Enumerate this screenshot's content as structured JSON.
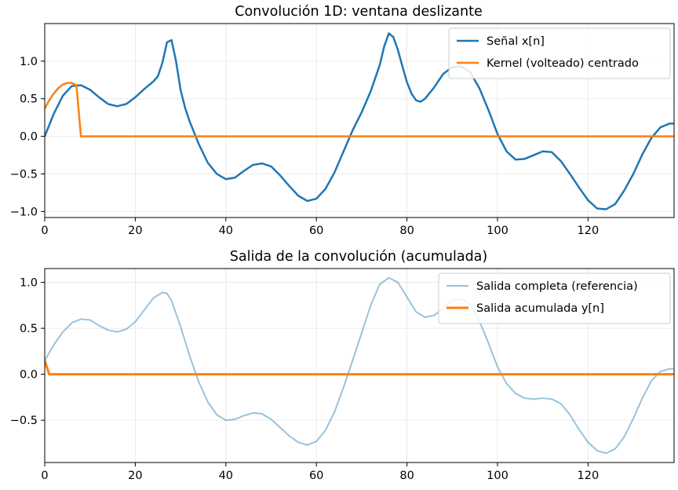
{
  "chart_data": [
    {
      "type": "line",
      "title": "Convolución 1D: ventana deslizante",
      "xlabel": "",
      "ylabel": "",
      "xlim": [
        0,
        139
      ],
      "ylim": [
        -1.08,
        1.5
      ],
      "x_ticks": [
        0,
        20,
        40,
        60,
        80,
        100,
        120
      ],
      "y_ticks": [
        1.0,
        0.5,
        0.0,
        -0.5,
        -1.0
      ],
      "x_tick_labels": [
        "0",
        "20",
        "40",
        "60",
        "80",
        "100",
        "120"
      ],
      "y_tick_labels": [
        "1.0",
        "0.5",
        "0.0",
        "−0.5",
        "−1.0"
      ],
      "grid": true,
      "legend_position": "top-right",
      "series": [
        {
          "name": "Señal x[n]",
          "color": "#1f77b4",
          "width": 2.5,
          "points": [
            [
              0,
              0.0
            ],
            [
              2,
              0.3
            ],
            [
              4,
              0.54
            ],
            [
              6,
              0.67
            ],
            [
              8,
              0.68
            ],
            [
              10,
              0.62
            ],
            [
              12,
              0.52
            ],
            [
              14,
              0.43
            ],
            [
              16,
              0.4
            ],
            [
              18,
              0.43
            ],
            [
              20,
              0.52
            ],
            [
              22,
              0.63
            ],
            [
              24,
              0.73
            ],
            [
              25,
              0.8
            ],
            [
              26,
              0.98
            ],
            [
              27,
              1.25
            ],
            [
              28,
              1.28
            ],
            [
              29,
              1.0
            ],
            [
              30,
              0.62
            ],
            [
              31,
              0.38
            ],
            [
              32,
              0.2
            ],
            [
              34,
              -0.1
            ],
            [
              36,
              -0.35
            ],
            [
              38,
              -0.5
            ],
            [
              40,
              -0.57
            ],
            [
              42,
              -0.55
            ],
            [
              44,
              -0.46
            ],
            [
              46,
              -0.38
            ],
            [
              48,
              -0.36
            ],
            [
              50,
              -0.4
            ],
            [
              52,
              -0.52
            ],
            [
              54,
              -0.66
            ],
            [
              56,
              -0.79
            ],
            [
              58,
              -0.86
            ],
            [
              60,
              -0.83
            ],
            [
              62,
              -0.7
            ],
            [
              64,
              -0.48
            ],
            [
              66,
              -0.2
            ],
            [
              68,
              0.08
            ],
            [
              70,
              0.32
            ],
            [
              72,
              0.6
            ],
            [
              74,
              0.95
            ],
            [
              75,
              1.2
            ],
            [
              76,
              1.37
            ],
            [
              77,
              1.32
            ],
            [
              78,
              1.15
            ],
            [
              79,
              0.93
            ],
            [
              80,
              0.72
            ],
            [
              81,
              0.57
            ],
            [
              82,
              0.48
            ],
            [
              83,
              0.46
            ],
            [
              84,
              0.5
            ],
            [
              86,
              0.65
            ],
            [
              88,
              0.83
            ],
            [
              90,
              0.92
            ],
            [
              92,
              0.93
            ],
            [
              94,
              0.85
            ],
            [
              96,
              0.64
            ],
            [
              98,
              0.35
            ],
            [
              100,
              0.03
            ],
            [
              102,
              -0.2
            ],
            [
              104,
              -0.31
            ],
            [
              106,
              -0.3
            ],
            [
              108,
              -0.25
            ],
            [
              110,
              -0.2
            ],
            [
              112,
              -0.21
            ],
            [
              114,
              -0.33
            ],
            [
              116,
              -0.5
            ],
            [
              118,
              -0.68
            ],
            [
              120,
              -0.85
            ],
            [
              122,
              -0.96
            ],
            [
              124,
              -0.97
            ],
            [
              126,
              -0.9
            ],
            [
              128,
              -0.72
            ],
            [
              130,
              -0.5
            ],
            [
              132,
              -0.24
            ],
            [
              134,
              -0.02
            ],
            [
              136,
              0.12
            ],
            [
              138,
              0.17
            ],
            [
              139,
              0.17
            ]
          ]
        },
        {
          "name": "Kernel (volteado) centrado",
          "color": "#ff7f0e",
          "width": 2.5,
          "points": [
            [
              0,
              0.37
            ],
            [
              1,
              0.48
            ],
            [
              2,
              0.57
            ],
            [
              3,
              0.64
            ],
            [
              4,
              0.69
            ],
            [
              5,
              0.71
            ],
            [
              6,
              0.71
            ],
            [
              7,
              0.68
            ],
            [
              8,
              0.0
            ],
            [
              139,
              0.0
            ]
          ]
        }
      ]
    },
    {
      "type": "line",
      "title": "Salida de la convolución (acumulada)",
      "xlabel": "",
      "ylabel": "",
      "xlim": [
        0,
        139
      ],
      "ylim": [
        -0.96,
        1.15
      ],
      "x_ticks": [
        0,
        20,
        40,
        60,
        80,
        100,
        120
      ],
      "y_ticks": [
        1.0,
        0.5,
        0.0,
        -0.5
      ],
      "x_tick_labels": [
        "0",
        "20",
        "40",
        "60",
        "80",
        "100",
        "120"
      ],
      "y_tick_labels": [
        "1.0",
        "0.5",
        "0.0",
        "−0.5"
      ],
      "grid": true,
      "legend_position": "top-right",
      "series": [
        {
          "name": "Salida completa (referencia)",
          "color": "#1f77b4",
          "opacity": 0.45,
          "width": 2,
          "points": [
            [
              0,
              0.15
            ],
            [
              2,
              0.32
            ],
            [
              4,
              0.46
            ],
            [
              6,
              0.56
            ],
            [
              8,
              0.6
            ],
            [
              10,
              0.59
            ],
            [
              12,
              0.53
            ],
            [
              14,
              0.48
            ],
            [
              16,
              0.46
            ],
            [
              18,
              0.49
            ],
            [
              20,
              0.57
            ],
            [
              22,
              0.7
            ],
            [
              24,
              0.83
            ],
            [
              26,
              0.89
            ],
            [
              27,
              0.88
            ],
            [
              28,
              0.8
            ],
            [
              30,
              0.52
            ],
            [
              32,
              0.2
            ],
            [
              34,
              -0.08
            ],
            [
              36,
              -0.3
            ],
            [
              38,
              -0.44
            ],
            [
              40,
              -0.5
            ],
            [
              42,
              -0.49
            ],
            [
              44,
              -0.45
            ],
            [
              46,
              -0.42
            ],
            [
              48,
              -0.43
            ],
            [
              50,
              -0.49
            ],
            [
              52,
              -0.58
            ],
            [
              54,
              -0.67
            ],
            [
              56,
              -0.74
            ],
            [
              58,
              -0.77
            ],
            [
              60,
              -0.73
            ],
            [
              62,
              -0.61
            ],
            [
              64,
              -0.41
            ],
            [
              66,
              -0.14
            ],
            [
              68,
              0.15
            ],
            [
              70,
              0.45
            ],
            [
              72,
              0.75
            ],
            [
              74,
              0.98
            ],
            [
              76,
              1.05
            ],
            [
              78,
              1.0
            ],
            [
              80,
              0.84
            ],
            [
              82,
              0.68
            ],
            [
              84,
              0.62
            ],
            [
              86,
              0.64
            ],
            [
              88,
              0.72
            ],
            [
              90,
              0.8
            ],
            [
              92,
              0.82
            ],
            [
              94,
              0.76
            ],
            [
              96,
              0.58
            ],
            [
              98,
              0.34
            ],
            [
              100,
              0.08
            ],
            [
              102,
              -0.1
            ],
            [
              104,
              -0.21
            ],
            [
              106,
              -0.26
            ],
            [
              108,
              -0.27
            ],
            [
              110,
              -0.26
            ],
            [
              112,
              -0.27
            ],
            [
              114,
              -0.32
            ],
            [
              116,
              -0.44
            ],
            [
              118,
              -0.6
            ],
            [
              120,
              -0.74
            ],
            [
              122,
              -0.83
            ],
            [
              124,
              -0.86
            ],
            [
              126,
              -0.81
            ],
            [
              128,
              -0.68
            ],
            [
              130,
              -0.48
            ],
            [
              132,
              -0.26
            ],
            [
              134,
              -0.07
            ],
            [
              136,
              0.03
            ],
            [
              138,
              0.06
            ],
            [
              139,
              0.06
            ]
          ]
        },
        {
          "name": "Salida acumulada y[n]",
          "color": "#ff7f0e",
          "width": 3,
          "points": [
            [
              0,
              0.15
            ],
            [
              1,
              0.0
            ],
            [
              139,
              0.0
            ]
          ]
        }
      ]
    }
  ]
}
